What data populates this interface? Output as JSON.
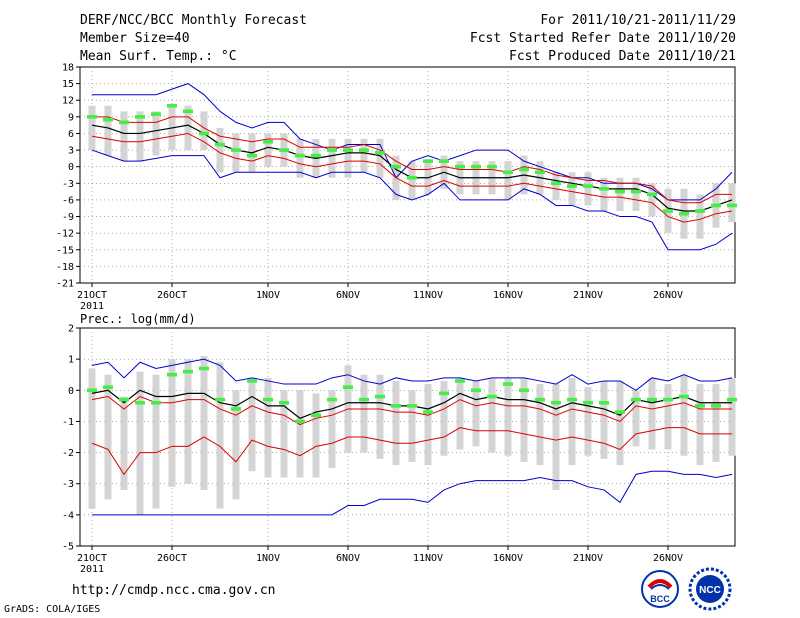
{
  "header": {
    "title": "DERF/NCC/BCC Monthly Forecast",
    "member_size": "Member Size=40",
    "variable": "Mean Surf. Temp.: °C",
    "period": "For 2011/10/21-2011/11/29",
    "started": "Fcst Started Refer Date 2011/10/20",
    "produced": "Fcst Produced Date 2011/10/21"
  },
  "footer": {
    "url": "http://cmdp.ncc.cma.gov.cn",
    "grads": "GrADS: COLA/IGES",
    "logo_bcc": "BCC",
    "logo_ncc": "NCC"
  },
  "colors": {
    "envelope": "#0000cc",
    "percentile": "#dd0000",
    "mean": "#000000",
    "bar": "#d4d4d4",
    "obs": "#44ee44",
    "grid": "#777777"
  },
  "chart_data": [
    {
      "type": "line",
      "title": "Mean Surf. Temp.: °C",
      "ylabel": "°C",
      "ylim": [
        -21,
        18
      ],
      "yticks": [
        18,
        15,
        12,
        9,
        6,
        3,
        0,
        -3,
        -6,
        -9,
        -12,
        -15,
        -18,
        -21
      ],
      "xticks": [
        {
          "day": 0,
          "label": "21OCT"
        },
        {
          "day": 5,
          "label": "26OCT"
        },
        {
          "day": 11,
          "label": "1NOV"
        },
        {
          "day": 16,
          "label": "6NOV"
        },
        {
          "day": 21,
          "label": "11NOV"
        },
        {
          "day": 26,
          "label": "16NOV"
        },
        {
          "day": 31,
          "label": "21NOV"
        },
        {
          "day": 36,
          "label": "26NOV"
        }
      ],
      "year_label": "2011",
      "series": [
        {
          "name": "max",
          "values": [
            3,
            2,
            1,
            1,
            1.5,
            2,
            2,
            2,
            -2,
            -1,
            -1,
            -1,
            -1,
            -1,
            -2,
            -1,
            -1,
            -1,
            -2,
            -5,
            -6,
            -5,
            -3,
            -6,
            -6,
            -6,
            -6,
            -4,
            -5,
            -7,
            -7,
            -8,
            -8,
            -9,
            -9,
            -10,
            -15,
            -15,
            -15,
            -14,
            -12
          ]
        },
        {
          "name": "min",
          "values": [
            13,
            13,
            13,
            13,
            13,
            14,
            15,
            13,
            10,
            8,
            7,
            8,
            8,
            5,
            4,
            3,
            4,
            4,
            4,
            -2,
            1,
            2,
            1,
            2,
            3,
            3,
            3,
            1,
            0,
            -1,
            -2,
            -2,
            -3,
            -3,
            -3,
            -4,
            -6,
            -6,
            -6,
            -4,
            -1
          ]
        }
      ],
      "mean": [
        7.5,
        7,
        6,
        6,
        6.5,
        7,
        7.5,
        6,
        4,
        3,
        2.5,
        3.5,
        3,
        2,
        1.5,
        2,
        2.5,
        2.5,
        2,
        -0.5,
        -2,
        -2,
        -1,
        -2,
        -2,
        -2,
        -2,
        -1.5,
        -2,
        -2.5,
        -3,
        -3.5,
        -4,
        -4,
        -4,
        -5,
        -7.5,
        -8,
        -8,
        -7,
        -6
      ],
      "p_high": [
        9,
        9,
        8,
        8,
        8,
        9,
        9,
        7,
        5.5,
        5,
        4.5,
        5,
        5,
        3.5,
        3.5,
        3.5,
        3.5,
        4,
        3,
        1,
        -0.5,
        -0.5,
        0,
        -0.5,
        -0.5,
        -0.5,
        -1,
        0,
        -0.5,
        -1.5,
        -2,
        -2.5,
        -2.5,
        -3,
        -3,
        -3.5,
        -6,
        -6.5,
        -6.5,
        -5,
        -5
      ],
      "p_low": [
        5.5,
        5,
        4.5,
        4.5,
        5,
        5.5,
        6,
        4.5,
        2.5,
        1.5,
        1,
        2,
        1.5,
        0.5,
        0,
        0.5,
        1,
        1,
        0.5,
        -2,
        -3.5,
        -3.5,
        -2.5,
        -3.5,
        -3.5,
        -3.5,
        -3.5,
        -3,
        -3.5,
        -4,
        -4.5,
        -5,
        -5.5,
        -5.5,
        -6,
        -6.5,
        -9,
        -10,
        -9.5,
        -8.5,
        -8
      ],
      "bar_top": [
        11,
        11,
        10,
        10,
        10,
        11,
        11,
        10,
        7,
        6,
        6,
        6,
        6,
        5,
        5,
        5,
        5,
        5,
        5,
        2,
        1,
        1,
        2,
        1,
        1,
        1,
        1,
        2,
        1,
        -1,
        -1,
        -1,
        -2,
        -2,
        -2,
        -3,
        -4,
        -4,
        -5,
        -3,
        -3
      ],
      "bar_bottom": [
        3,
        2,
        1,
        1,
        2,
        3,
        3,
        3,
        -1,
        -1,
        -1,
        0,
        0,
        -2,
        -2,
        -2,
        -2,
        -1,
        -2,
        -6,
        -6,
        -5,
        -4,
        -5,
        -5,
        -5,
        -6,
        -5,
        -5,
        -6,
        -7,
        -7,
        -8,
        -8,
        -8,
        -9,
        -12,
        -13,
        -13,
        -11,
        -10
      ],
      "observed": [
        9,
        8.5,
        8,
        9,
        9.5,
        11,
        10,
        6,
        4,
        3,
        2,
        4.5,
        3,
        2,
        2,
        3,
        3,
        3,
        2.5,
        0,
        -2,
        1,
        1,
        0,
        0,
        0,
        -1,
        -0.5,
        -1,
        -3,
        -3.5,
        -3.5,
        -4,
        -4.5,
        -4.5,
        -5,
        -8,
        -8.5,
        -8,
        -7,
        -7
      ]
    },
    {
      "type": "line",
      "title": "Prec.: log(mm/d)",
      "ylabel": "log(mm/d)",
      "ylim": [
        -5,
        2
      ],
      "yticks": [
        2,
        1,
        0,
        -1,
        -2,
        -3,
        -4,
        -5
      ],
      "xticks": [
        {
          "day": 0,
          "label": "21OCT"
        },
        {
          "day": 5,
          "label": "26OCT"
        },
        {
          "day": 11,
          "label": "1NOV"
        },
        {
          "day": 16,
          "label": "6NOV"
        },
        {
          "day": 21,
          "label": "11NOV"
        },
        {
          "day": 26,
          "label": "16NOV"
        },
        {
          "day": 31,
          "label": "21NOV"
        },
        {
          "day": 36,
          "label": "26NOV"
        }
      ],
      "year_label": "2011",
      "series": [
        {
          "name": "max",
          "values": [
            0.8,
            0.9,
            0.4,
            0.9,
            0.7,
            0.8,
            0.9,
            1.0,
            0.8,
            0.3,
            0.4,
            0.3,
            0.2,
            0.2,
            0.2,
            0.4,
            0.5,
            0.3,
            0.2,
            0.4,
            0.3,
            0.3,
            0.4,
            0.4,
            0.3,
            0.4,
            0.4,
            0.4,
            0.3,
            0.2,
            0.5,
            0.2,
            0.3,
            0.3,
            0.0,
            0.4,
            0.3,
            0.5,
            0.3,
            0.3,
            0.4
          ]
        },
        {
          "name": "min",
          "values": [
            -4,
            -4,
            -4,
            -4,
            -4,
            -4,
            -4,
            -4,
            -4,
            -4,
            -4,
            -4,
            -4,
            -4,
            -4,
            -4,
            -3.7,
            -3.7,
            -3.5,
            -3.5,
            -3.5,
            -3.6,
            -3.2,
            -3,
            -2.9,
            -2.9,
            -2.9,
            -2.9,
            -2.8,
            -2.9,
            -2.9,
            -3.1,
            -3.2,
            -3.6,
            -2.7,
            -2.6,
            -2.6,
            -2.7,
            -2.7,
            -2.8,
            -2.7
          ]
        }
      ],
      "mean": [
        -0.1,
        0.0,
        -0.4,
        0.0,
        -0.2,
        -0.2,
        -0.1,
        -0.1,
        -0.4,
        -0.5,
        -0.2,
        -0.5,
        -0.5,
        -0.9,
        -0.7,
        -0.6,
        -0.4,
        -0.4,
        -0.4,
        -0.5,
        -0.5,
        -0.6,
        -0.4,
        -0.1,
        -0.3,
        -0.2,
        -0.3,
        -0.3,
        -0.4,
        -0.6,
        -0.4,
        -0.5,
        -0.6,
        -0.8,
        -0.3,
        -0.4,
        -0.3,
        -0.2,
        -0.4,
        -0.4,
        -0.4
      ],
      "p_high": [
        -0.3,
        -0.2,
        -0.6,
        -0.2,
        -0.4,
        -0.4,
        -0.3,
        -0.3,
        -0.6,
        -0.8,
        -0.5,
        -0.7,
        -0.8,
        -1.1,
        -0.9,
        -0.8,
        -0.6,
        -0.6,
        -0.6,
        -0.7,
        -0.7,
        -0.8,
        -0.6,
        -0.3,
        -0.5,
        -0.4,
        -0.5,
        -0.5,
        -0.6,
        -0.8,
        -0.6,
        -0.7,
        -0.8,
        -1.0,
        -0.5,
        -0.6,
        -0.5,
        -0.4,
        -0.6,
        -0.6,
        -0.6
      ],
      "p_low": [
        -1.7,
        -1.9,
        -2.7,
        -2.0,
        -2.0,
        -1.8,
        -1.8,
        -1.5,
        -1.8,
        -2.3,
        -1.6,
        -1.8,
        -1.9,
        -2.1,
        -1.8,
        -1.7,
        -1.5,
        -1.5,
        -1.6,
        -1.7,
        -1.7,
        -1.6,
        -1.5,
        -1.2,
        -1.3,
        -1.3,
        -1.3,
        -1.4,
        -1.5,
        -1.6,
        -1.5,
        -1.6,
        -1.7,
        -1.9,
        -1.4,
        -1.3,
        -1.2,
        -1.2,
        -1.4,
        -1.4,
        -1.4
      ],
      "bar_top": [
        0.7,
        0.5,
        -0.2,
        0.6,
        0.5,
        1.0,
        1.0,
        1.1,
        0.9,
        0.0,
        0.4,
        0.4,
        0.0,
        0.0,
        -0.1,
        0.0,
        0.8,
        0.5,
        0.5,
        0.3,
        0.0,
        0.2,
        0.3,
        0.4,
        0.3,
        0.4,
        0.4,
        0.4,
        0.2,
        0.2,
        0.4,
        0.1,
        0.3,
        0.3,
        0.0,
        0.4,
        0.2,
        0.5,
        0.2,
        0.2,
        0.4
      ],
      "bar_bottom": [
        -3.8,
        -3.5,
        -3.2,
        -4,
        -3.8,
        -3.1,
        -3.0,
        -3.2,
        -3.8,
        -3.5,
        -2.6,
        -2.8,
        -2.8,
        -2.8,
        -2.8,
        -2.5,
        -2.0,
        -2.0,
        -2.2,
        -2.4,
        -2.3,
        -2.4,
        -2.1,
        -1.9,
        -1.8,
        -2.0,
        -2.1,
        -2.3,
        -2.4,
        -3.2,
        -2.4,
        -2.1,
        -2.2,
        -2.4,
        -1.8,
        -1.9,
        -1.9,
        -2.1,
        -2.4,
        -2.3,
        -2.1
      ],
      "observed": [
        0.0,
        0.1,
        -0.3,
        -0.4,
        -0.4,
        0.5,
        0.6,
        0.7,
        -0.3,
        -0.6,
        0.3,
        -0.3,
        -0.4,
        -1.0,
        -0.8,
        -0.3,
        0.1,
        -0.3,
        -0.2,
        -0.5,
        -0.5,
        -0.7,
        -0.1,
        0.3,
        0.0,
        -0.2,
        0.2,
        0.0,
        -0.3,
        -0.4,
        -0.3,
        -0.4,
        -0.4,
        -0.7,
        -0.3,
        -0.3,
        -0.3,
        -0.2,
        -0.5,
        -0.5,
        -0.3
      ]
    }
  ]
}
